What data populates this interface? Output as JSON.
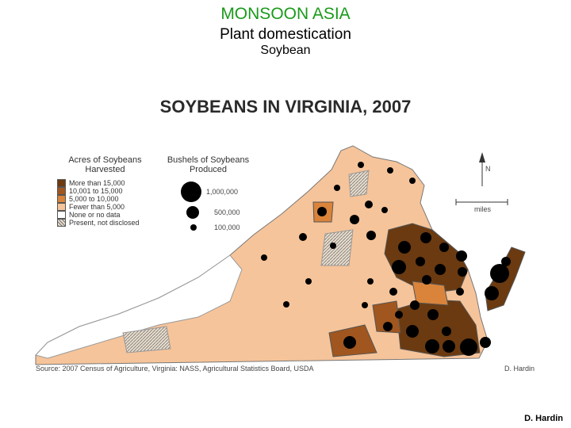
{
  "header": {
    "title": "MONSOON ASIA",
    "subtitle": "Plant domestication",
    "topic": "Soybean"
  },
  "map": {
    "title": "SOYBEANS IN VIRGINIA, 2007",
    "acres_legend": {
      "title": "Acres of Soybeans Harvested",
      "items": [
        "More than 15,000",
        "10,001 to 15,000",
        "5,000 to 10,000",
        "Fewer than 5,000",
        "None or no data",
        "Present, not disclosed"
      ]
    },
    "bushels_legend": {
      "title": "Bushels of Soybeans Produced",
      "items": [
        "1,000,000",
        "500,000",
        "100,000"
      ]
    },
    "north_label": "N",
    "scale_label": "miles",
    "source": "Source: 2007 Census of Agriculture, Virginia: NASS, Agricultural Statistics Board, USDA",
    "credit": "D. Hardin"
  },
  "footer": {
    "credit": "D. Hardin"
  }
}
